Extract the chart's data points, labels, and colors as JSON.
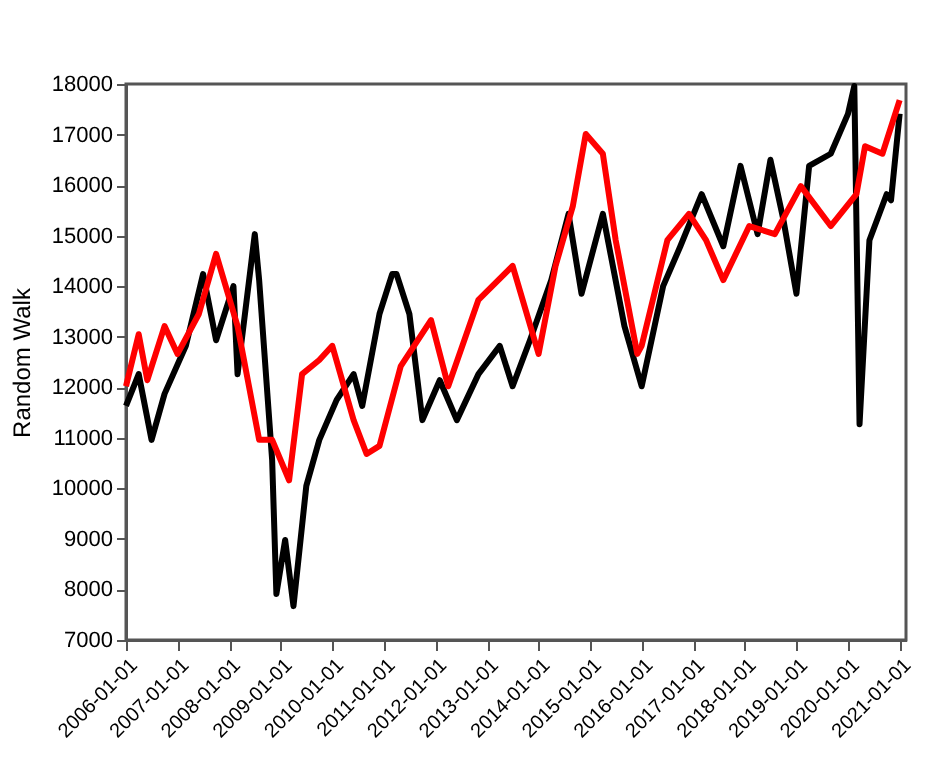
{
  "chart_data": {
    "type": "line",
    "ylabel": "Random Walk",
    "xlim": [
      "2006-01-01",
      "2021-02-15"
    ],
    "ylim": [
      7000,
      18000
    ],
    "xticks": [
      "2006-01-01",
      "2007-01-01",
      "2008-01-01",
      "2009-01-01",
      "2010-01-01",
      "2011-01-01",
      "2012-01-01",
      "2013-01-01",
      "2014-01-01",
      "2015-01-01",
      "2016-01-01",
      "2017-01-01",
      "2018-01-01",
      "2019-01-01",
      "2020-01-01",
      "2021-01-01"
    ],
    "yticks": [
      7000,
      8000,
      9000,
      10000,
      11000,
      12000,
      13000,
      14000,
      15000,
      16000,
      17000,
      18000
    ],
    "grid": false,
    "line_style": "solid",
    "marker": "none",
    "series": [
      {
        "color": "#000000",
        "x": [
          "2006-01",
          "2006-04",
          "2006-07",
          "2006-10",
          "2007-03",
          "2007-07",
          "2007-10",
          "2008-02",
          "2008-03",
          "2008-07",
          "2008-08",
          "2008-11",
          "2008-12",
          "2009-02",
          "2009-04",
          "2009-07",
          "2009-10",
          "2010-02",
          "2010-06",
          "2010-08",
          "2010-12",
          "2011-03",
          "2011-04",
          "2011-07",
          "2011-10",
          "2012-02",
          "2012-06",
          "2012-11",
          "2013-04",
          "2013-07",
          "2013-11",
          "2014-04",
          "2014-08",
          "2014-11",
          "2015-04",
          "2015-09",
          "2016-01",
          "2016-06",
          "2016-10",
          "2017-03",
          "2017-08",
          "2017-12",
          "2018-04",
          "2018-07",
          "2018-10",
          "2019-01",
          "2019-04",
          "2019-09",
          "2020-01",
          "2020-02-15",
          "2020-03-23",
          "2020-06",
          "2020-10",
          "2020-11",
          "2021-01"
        ],
        "values": [
          11630,
          12260,
          10960,
          11870,
          12820,
          14240,
          12930,
          14000,
          12260,
          15030,
          14120,
          10560,
          7910,
          8980,
          7670,
          10050,
          10960,
          11750,
          12260,
          11630,
          13450,
          14240,
          14240,
          13450,
          11350,
          12140,
          11350,
          12260,
          12820,
          12020,
          12930,
          14120,
          15430,
          13850,
          15430,
          13210,
          12020,
          14000,
          14790,
          15820,
          14790,
          16380,
          15030,
          16500,
          15310,
          13850,
          16380,
          16620,
          17410,
          17960,
          11270,
          14910,
          15820,
          15700,
          17410
        ]
      },
      {
        "color": "#ff0000",
        "x": [
          "2006-01",
          "2006-04",
          "2006-06",
          "2006-10",
          "2007-01",
          "2007-06",
          "2007-10",
          "2008-03",
          "2008-08",
          "2008-11",
          "2009-03",
          "2009-06",
          "2009-10",
          "2010-01",
          "2010-06",
          "2010-09",
          "2010-12",
          "2011-05",
          "2011-12",
          "2012-04",
          "2012-11",
          "2013-07",
          "2014-01",
          "2014-05",
          "2014-09",
          "2014-12",
          "2015-04",
          "2015-07",
          "2015-12",
          "2016-01",
          "2016-07",
          "2016-12",
          "2017-04",
          "2017-08",
          "2018-02",
          "2018-08",
          "2019-02",
          "2019-09",
          "2020-03",
          "2020-05",
          "2020-09",
          "2021-01"
        ],
        "values": [
          12020,
          13050,
          12140,
          13210,
          12660,
          13450,
          14640,
          13210,
          10960,
          10960,
          10160,
          12260,
          12540,
          12820,
          11350,
          10680,
          10840,
          12420,
          13330,
          12020,
          13730,
          14400,
          12660,
          14400,
          15590,
          17010,
          16620,
          14910,
          12660,
          12820,
          14910,
          15430,
          14910,
          14120,
          15190,
          15030,
          15980,
          15190,
          15820,
          16770,
          16620,
          17680
        ]
      }
    ]
  }
}
